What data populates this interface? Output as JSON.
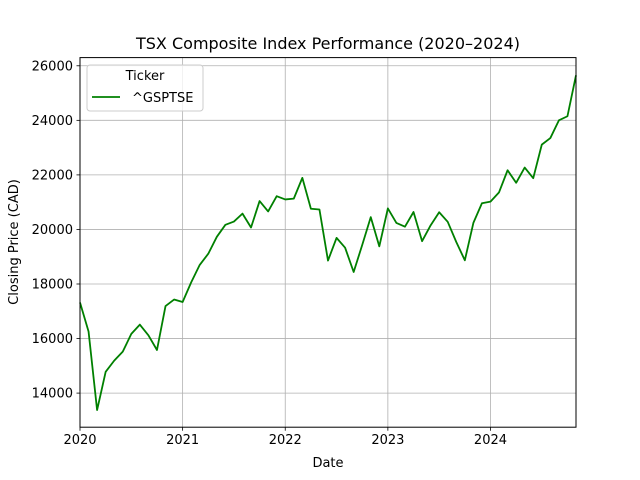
{
  "chart_data": {
    "type": "line",
    "title": "TSX Composite Index Performance (2020–2024)",
    "xlabel": "Date",
    "ylabel": "Closing Price (CAD)",
    "x_ticks": [
      "2020",
      "2021",
      "2022",
      "2023",
      "2024"
    ],
    "y_ticks": [
      "14000",
      "16000",
      "18000",
      "20000",
      "22000",
      "24000",
      "26000"
    ],
    "xlim": [
      "2020-01",
      "2024-11"
    ],
    "ylim": [
      12750,
      26300
    ],
    "grid": true,
    "legend": {
      "title": "Ticker",
      "placement": "top-left"
    },
    "series": [
      {
        "name": "^GSPTSE",
        "color": "#008000",
        "x": [
          "2020-01",
          "2020-02",
          "2020-03",
          "2020-04",
          "2020-05",
          "2020-06",
          "2020-07",
          "2020-08",
          "2020-09",
          "2020-10",
          "2020-11",
          "2020-12",
          "2021-01",
          "2021-02",
          "2021-03",
          "2021-04",
          "2021-05",
          "2021-06",
          "2021-07",
          "2021-08",
          "2021-09",
          "2021-10",
          "2021-11",
          "2021-12",
          "2022-01",
          "2022-02",
          "2022-03",
          "2022-04",
          "2022-05",
          "2022-06",
          "2022-07",
          "2022-08",
          "2022-09",
          "2022-10",
          "2022-11",
          "2022-12",
          "2023-01",
          "2023-02",
          "2023-03",
          "2023-04",
          "2023-05",
          "2023-06",
          "2023-07",
          "2023-08",
          "2023-09",
          "2023-10",
          "2023-11",
          "2023-12",
          "2024-01",
          "2024-02",
          "2024-03",
          "2024-04",
          "2024-05",
          "2024-06",
          "2024-07",
          "2024-08",
          "2024-09",
          "2024-10",
          "2024-11"
        ],
        "values": [
          17320,
          16260,
          13380,
          14780,
          15190,
          15520,
          16170,
          16510,
          16120,
          15580,
          17190,
          17430,
          17340,
          18060,
          18700,
          19110,
          19730,
          20170,
          20290,
          20580,
          20070,
          21040,
          20660,
          21220,
          21100,
          21130,
          21890,
          20760,
          20730,
          18860,
          19690,
          19330,
          18440,
          19430,
          20450,
          19380,
          20770,
          20240,
          20100,
          20640,
          19570,
          20150,
          20630,
          20280,
          19540,
          18870,
          20240,
          20960,
          21020,
          21360,
          22170,
          21710,
          22270,
          21880,
          23110,
          23350,
          24000,
          24150,
          25650
        ]
      }
    ]
  }
}
